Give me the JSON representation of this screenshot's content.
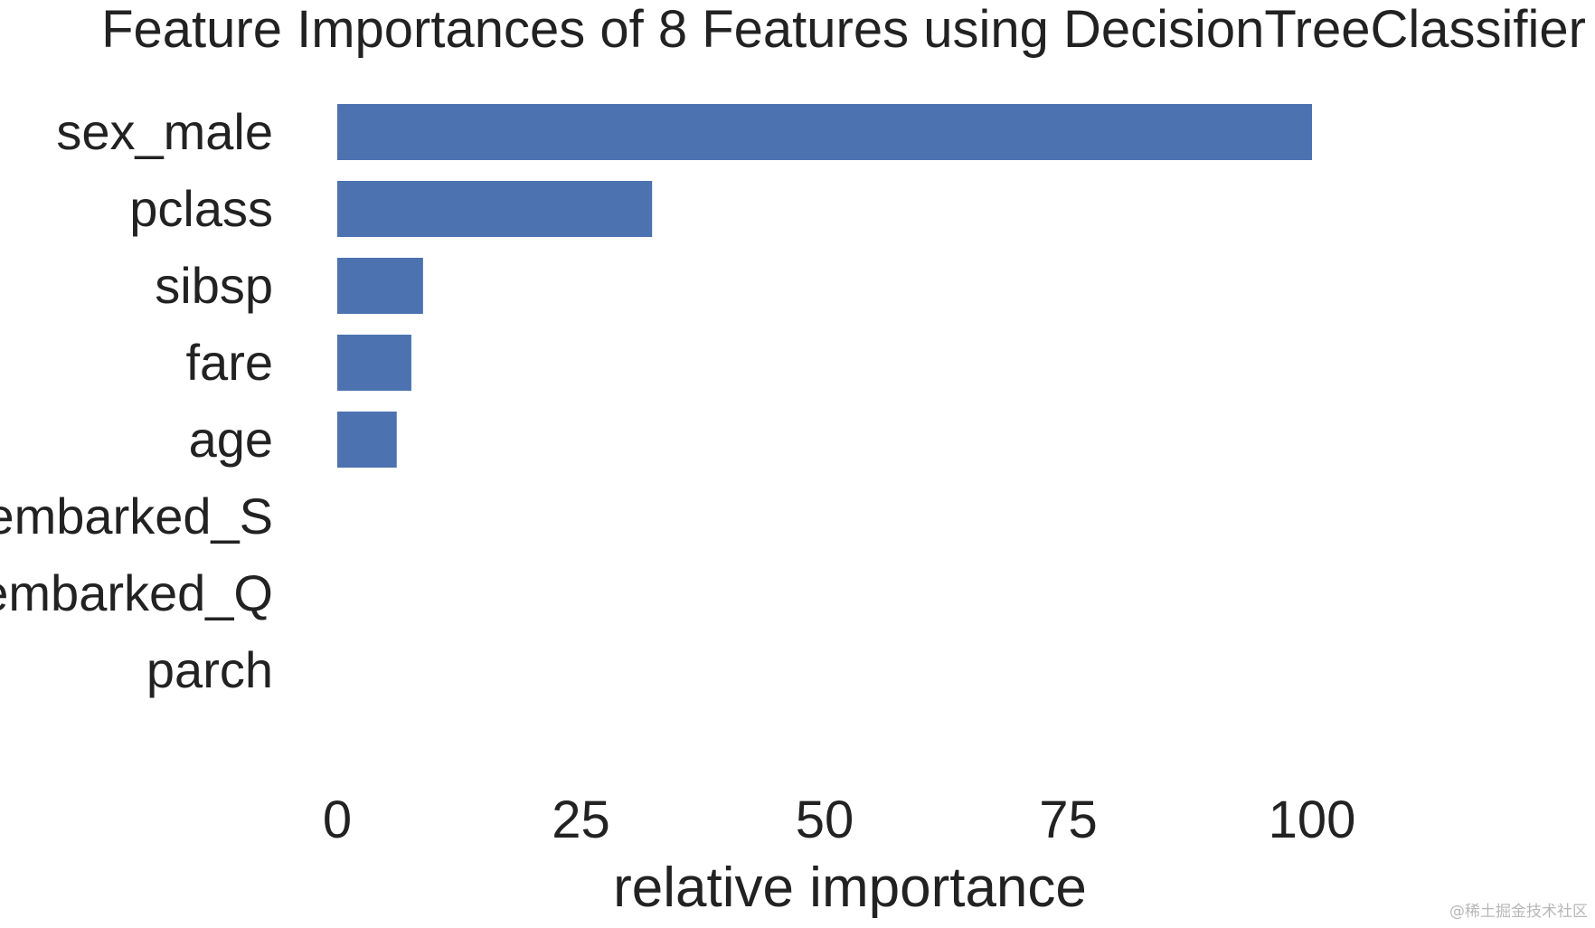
{
  "chart_data": {
    "type": "bar",
    "orientation": "horizontal",
    "title": "Feature Importances of 8 Features using DecisionTreeClassifier",
    "xlabel": "relative importance",
    "ylabel": "",
    "categories": [
      "sex_male",
      "pclass",
      "sibsp",
      "fare",
      "age",
      "embarked_S",
      "embarked_Q",
      "parch"
    ],
    "values": [
      100,
      32.3,
      8.8,
      7.6,
      6.1,
      0,
      0,
      0
    ],
    "xlim": [
      0,
      100
    ],
    "xticks": [
      0,
      25,
      50,
      75,
      100
    ],
    "bar_color": "#4c72b0",
    "grid": false
  },
  "watermark": "@稀土掘金技术社区"
}
